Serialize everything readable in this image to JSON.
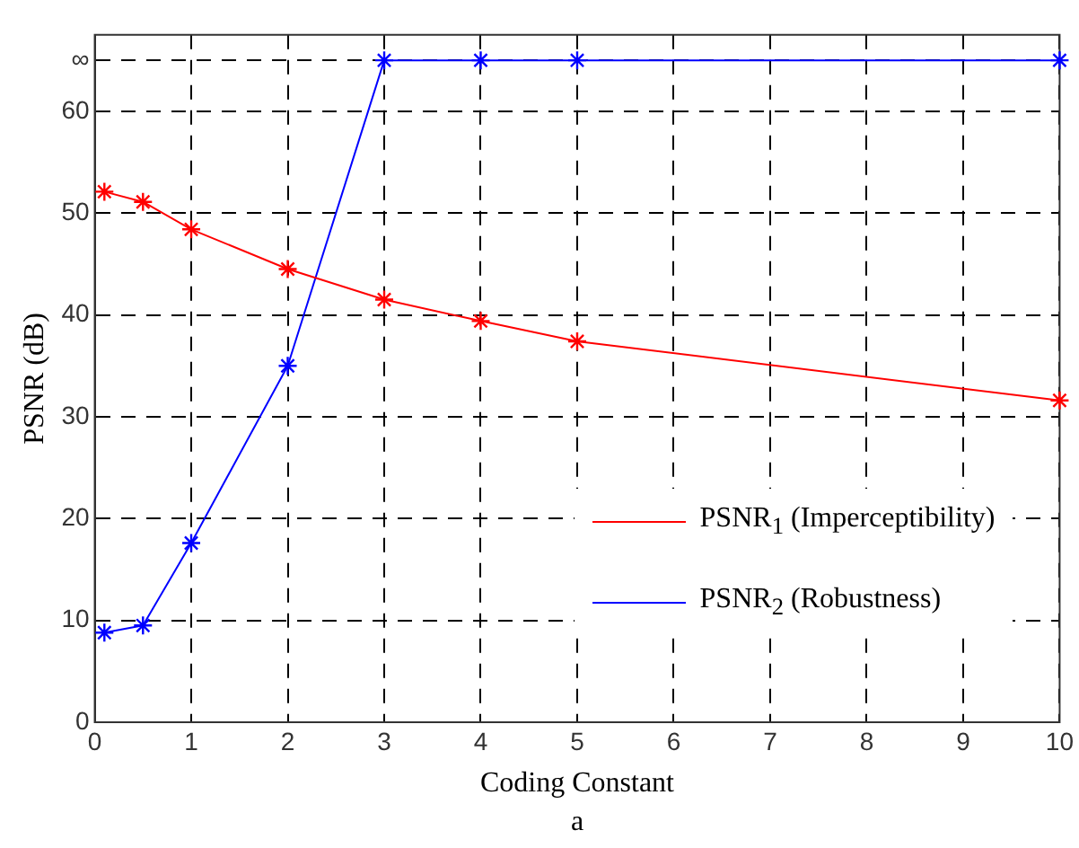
{
  "chart_data": {
    "type": "line",
    "xlabel": "Coding Constant",
    "ylabel": "PSNR (dB)",
    "annotations": [
      "a"
    ],
    "xlim": [
      0,
      10
    ],
    "xticks": [
      0,
      1,
      2,
      3,
      4,
      5,
      6,
      7,
      8,
      9,
      10
    ],
    "ylim": [
      0,
      67.5
    ],
    "yticks": [
      0,
      10,
      20,
      30,
      40,
      50,
      60,
      {
        "value": 65,
        "label": "∞"
      }
    ],
    "grid": true,
    "legend": "bottom right",
    "marker": "cross",
    "line_style": "solid",
    "series": [
      {
        "name": "PSNR$_{1}$ (Imperceptibility)",
        "color": "#ff0000",
        "x": [
          0.1,
          0.5,
          1,
          2,
          3,
          4,
          5,
          10
        ],
        "values": [
          52.1,
          51.1,
          48.4,
          44.5,
          41.5,
          39.4,
          37.4,
          31.6
        ]
      },
      {
        "name": "PSNR$_{2}$ (Robustness)",
        "color": "#0000ff",
        "x": [
          0.1,
          0.5,
          1,
          2,
          3,
          4,
          5,
          10
        ],
        "values": [
          8.8,
          9.5,
          17.6,
          35.0,
          65,
          65,
          65,
          65
        ]
      }
    ]
  }
}
